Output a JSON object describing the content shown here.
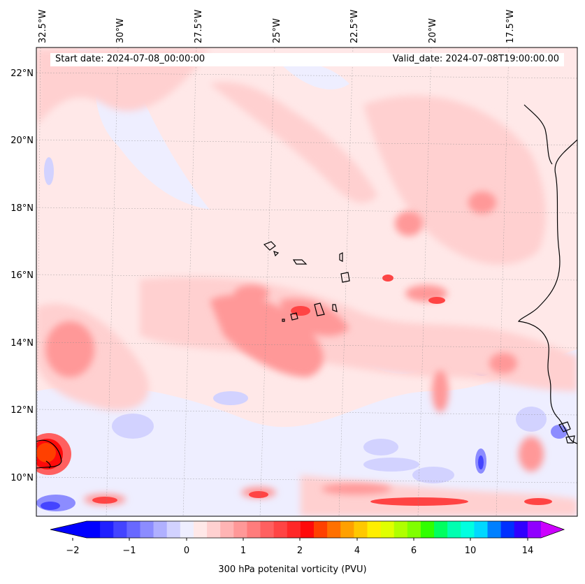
{
  "map": {
    "start_label": "Start date: 2024-07-08_00:00:00",
    "valid_label": "Valid_date: 2024-07-08T19:00:00.00",
    "lon_labels": [
      "32.5°W",
      "30°W",
      "27.5°W",
      "25°W",
      "22.5°W",
      "20°W",
      "17.5°W"
    ],
    "lat_labels": [
      "22°N",
      "20°N",
      "18°N",
      "16°N",
      "14°N",
      "12°N",
      "10°N"
    ],
    "extent": {
      "lon_min": -32.6,
      "lon_max": -15.8,
      "lat_min": 8.9,
      "lat_max": 22.8
    }
  },
  "colorbar": {
    "title": "300 hPa potenital vorticity (PVU)",
    "tick_labels": [
      "−2",
      "−1",
      "0",
      "1",
      "2",
      "4",
      "6",
      "10",
      "14"
    ],
    "levels": [
      -2,
      -1.75,
      -1.5,
      -1.25,
      -1,
      -0.75,
      -0.5,
      -0.25,
      0,
      0.25,
      0.5,
      0.75,
      1,
      1.25,
      1.5,
      1.75,
      2,
      2.5,
      3,
      3.5,
      4,
      4.5,
      5,
      5.5,
      6,
      7,
      8,
      9,
      10,
      11,
      12,
      13,
      14,
      15
    ],
    "colors": [
      "#0000ff",
      "#2020ff",
      "#4444ff",
      "#6868ff",
      "#8c8cff",
      "#b0b0ff",
      "#d2d2ff",
      "#eeeeff",
      "#ffe8e8",
      "#ffd0d0",
      "#ffb4b4",
      "#ff9898",
      "#ff7c7c",
      "#ff6060",
      "#ff4444",
      "#ff2828",
      "#ff0a0a",
      "#ff4000",
      "#ff7000",
      "#ffa000",
      "#ffc800",
      "#ffee00",
      "#e0ff00",
      "#b0ff00",
      "#80ff00",
      "#30ff00",
      "#00ff60",
      "#00ffb0",
      "#00ffe0",
      "#00d8ff",
      "#0080ff",
      "#0030ff",
      "#3000ff",
      "#9000ff"
    ],
    "under_color": "#0000ff",
    "over_color": "#cc00ff"
  }
}
